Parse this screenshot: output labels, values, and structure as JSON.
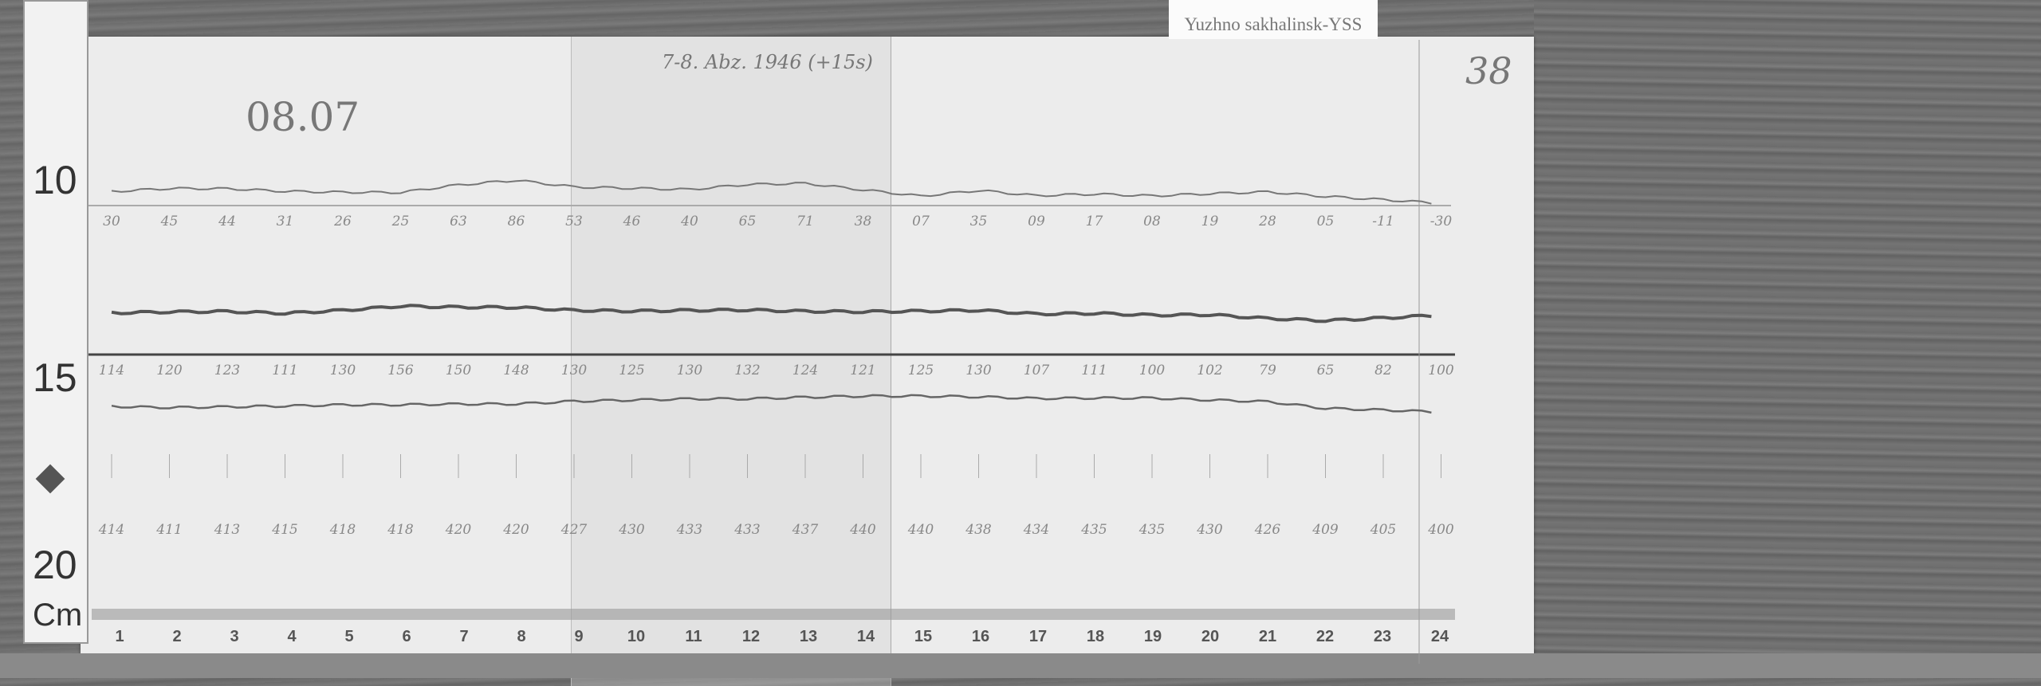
{
  "station_label": "Yuzhno sakhalinsk-YSS",
  "sheet_number": "38",
  "date_mark": "08.07",
  "record_title": "7-8. Abz. 1946 (+15s)",
  "ruler": {
    "marks": [
      "10",
      "15",
      "20"
    ],
    "unit": "Cm"
  },
  "hourly_values": {
    "trace_1": [
      "30",
      "45",
      "44",
      "31",
      "26",
      "25",
      "63",
      "86",
      "53",
      "46",
      "40",
      "65",
      "71",
      "38",
      "07",
      "35",
      "09",
      "17",
      "08",
      "19",
      "28",
      "05",
      "-11",
      "-30"
    ],
    "trace_2": [
      "114",
      "120",
      "123",
      "111",
      "130",
      "156",
      "150",
      "148",
      "130",
      "125",
      "130",
      "132",
      "124",
      "121",
      "125",
      "130",
      "107",
      "111",
      "100",
      "102",
      "79",
      "65",
      "82",
      "100"
    ],
    "trace_3": [
      "414",
      "411",
      "413",
      "415",
      "418",
      "418",
      "420",
      "420",
      "427",
      "430",
      "433",
      "433",
      "437",
      "440",
      "440",
      "438",
      "434",
      "435",
      "435",
      "430",
      "426",
      "409",
      "405",
      "400"
    ]
  },
  "hour_labels": [
    "1",
    "2",
    "3",
    "4",
    "5",
    "6",
    "7",
    "8",
    "9",
    "10",
    "11",
    "12",
    "13",
    "14",
    "15",
    "16",
    "17",
    "18",
    "19",
    "20",
    "21",
    "22",
    "23",
    "24"
  ],
  "colors": {
    "paper": "#ececec",
    "ink": "#555555",
    "wood": "#6e6e6e"
  }
}
